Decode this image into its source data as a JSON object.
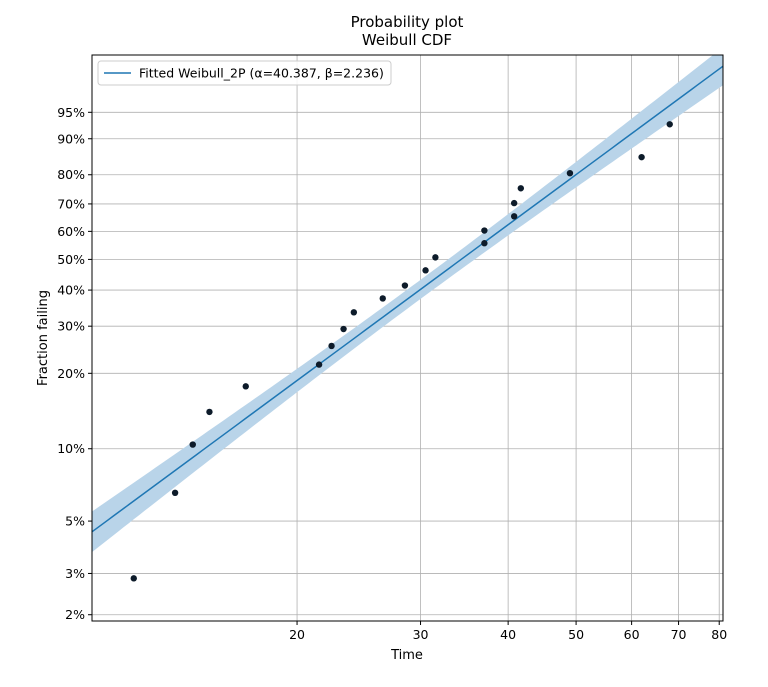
{
  "chart_data": {
    "type": "scatter",
    "title": "Probability plot",
    "subtitle": "Weibull CDF",
    "xlabel": "Time",
    "ylabel": "Fraction failing",
    "x_scale": "log",
    "y_scale": "weibull",
    "xlim": [
      10.2,
      81.0
    ],
    "ylim": [
      0.0188,
      0.995
    ],
    "grid": true,
    "legend_position": "top-left",
    "x_ticks": [
      {
        "value": 20,
        "label": "20"
      },
      {
        "value": 30,
        "label": "30"
      },
      {
        "value": 40,
        "label": "40"
      },
      {
        "value": 50,
        "label": "50"
      },
      {
        "value": 60,
        "label": "60"
      },
      {
        "value": 70,
        "label": "70"
      },
      {
        "value": 80,
        "label": "80"
      }
    ],
    "y_ticks": [
      {
        "value": 0.02,
        "label": "2%"
      },
      {
        "value": 0.03,
        "label": "3%"
      },
      {
        "value": 0.05,
        "label": "5%"
      },
      {
        "value": 0.1,
        "label": "10%"
      },
      {
        "value": 0.2,
        "label": "20%"
      },
      {
        "value": 0.3,
        "label": "30%"
      },
      {
        "value": 0.4,
        "label": "40%"
      },
      {
        "value": 0.5,
        "label": "50%"
      },
      {
        "value": 0.6,
        "label": "60%"
      },
      {
        "value": 0.7,
        "label": "70%"
      },
      {
        "value": 0.8,
        "label": "80%"
      },
      {
        "value": 0.9,
        "label": "90%"
      },
      {
        "value": 0.95,
        "label": "95%"
      }
    ],
    "fit": {
      "label": "Fitted Weibull_2P (α=40.387, β=2.236)",
      "alpha": 40.387,
      "beta": 2.236,
      "color": "#1f77b4",
      "band_color": "#b9d4e9"
    },
    "points": [
      {
        "x": 11.7,
        "y": 0.0286
      },
      {
        "x": 13.4,
        "y": 0.0657
      },
      {
        "x": 14.2,
        "y": 0.104
      },
      {
        "x": 15.0,
        "y": 0.141
      },
      {
        "x": 16.9,
        "y": 0.178
      },
      {
        "x": 21.5,
        "y": 0.216
      },
      {
        "x": 22.4,
        "y": 0.254
      },
      {
        "x": 23.3,
        "y": 0.293
      },
      {
        "x": 24.1,
        "y": 0.336
      },
      {
        "x": 26.5,
        "y": 0.375
      },
      {
        "x": 28.5,
        "y": 0.414
      },
      {
        "x": 30.5,
        "y": 0.463
      },
      {
        "x": 31.5,
        "y": 0.507
      },
      {
        "x": 37.0,
        "y": 0.557
      },
      {
        "x": 37.0,
        "y": 0.603
      },
      {
        "x": 40.8,
        "y": 0.655
      },
      {
        "x": 40.8,
        "y": 0.703
      },
      {
        "x": 41.7,
        "y": 0.755
      },
      {
        "x": 49.0,
        "y": 0.805
      },
      {
        "x": 62.0,
        "y": 0.853
      },
      {
        "x": 68.0,
        "y": 0.93
      }
    ]
  }
}
